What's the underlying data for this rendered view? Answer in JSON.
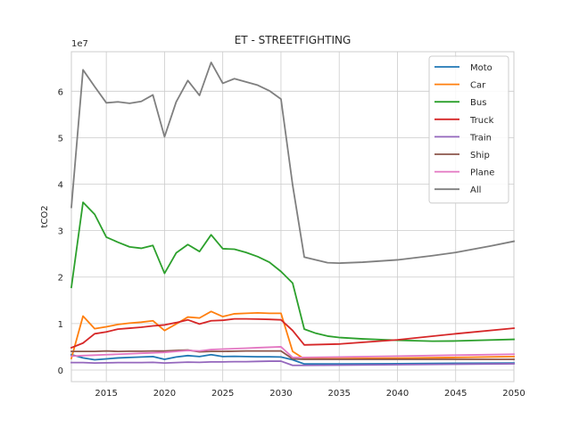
{
  "chart_data": {
    "type": "line",
    "title": "ET - STREETFIGHTING",
    "xlabel": "",
    "ylabel": "tCO2",
    "y_offset_label": "1e7",
    "y_scale_factor": 10000000,
    "xlim": [
      2012,
      2050
    ],
    "ylim": [
      -2500000,
      68500000
    ],
    "x_ticks": [
      2015,
      2020,
      2025,
      2030,
      2035,
      2040,
      2045,
      2050
    ],
    "y_ticks": [
      0,
      10000000,
      20000000,
      30000000,
      40000000,
      50000000,
      60000000
    ],
    "y_tick_labels": [
      "0",
      "1",
      "2",
      "3",
      "4",
      "5",
      "6"
    ],
    "grid": true,
    "legend_position": "top-right",
    "series": [
      {
        "name": "Moto",
        "color": "#1f77b4",
        "points": [
          [
            2012,
            3300000
          ],
          [
            2013,
            2600000
          ],
          [
            2014,
            2200000
          ],
          [
            2015,
            2400000
          ],
          [
            2016,
            2600000
          ],
          [
            2017,
            2700000
          ],
          [
            2018,
            2800000
          ],
          [
            2019,
            2900000
          ],
          [
            2020,
            2300000
          ],
          [
            2021,
            2800000
          ],
          [
            2022,
            3100000
          ],
          [
            2023,
            2900000
          ],
          [
            2024,
            3300000
          ],
          [
            2025,
            2900000
          ],
          [
            2026,
            2950000
          ],
          [
            2027,
            2900000
          ],
          [
            2028,
            2850000
          ],
          [
            2029,
            2850000
          ],
          [
            2030,
            2800000
          ],
          [
            2031,
            2200000
          ],
          [
            2032,
            1300000
          ],
          [
            2035,
            1300000
          ],
          [
            2040,
            1350000
          ],
          [
            2045,
            1450000
          ],
          [
            2050,
            1500000
          ]
        ]
      },
      {
        "name": "Car",
        "color": "#ff7f0e",
        "points": [
          [
            2012,
            2500000
          ],
          [
            2013,
            11600000
          ],
          [
            2014,
            8900000
          ],
          [
            2015,
            9300000
          ],
          [
            2016,
            9800000
          ],
          [
            2017,
            10100000
          ],
          [
            2018,
            10300000
          ],
          [
            2019,
            10600000
          ],
          [
            2020,
            8500000
          ],
          [
            2021,
            9900000
          ],
          [
            2022,
            11400000
          ],
          [
            2023,
            11200000
          ],
          [
            2024,
            12600000
          ],
          [
            2025,
            11500000
          ],
          [
            2026,
            12100000
          ],
          [
            2027,
            12200000
          ],
          [
            2028,
            12300000
          ],
          [
            2029,
            12200000
          ],
          [
            2030,
            12200000
          ],
          [
            2031,
            4000000
          ],
          [
            2032,
            2400000
          ],
          [
            2035,
            2450000
          ],
          [
            2040,
            2550000
          ],
          [
            2045,
            2700000
          ],
          [
            2050,
            2900000
          ]
        ]
      },
      {
        "name": "Bus",
        "color": "#2ca02c",
        "points": [
          [
            2012,
            17800000
          ],
          [
            2013,
            36100000
          ],
          [
            2014,
            33500000
          ],
          [
            2015,
            28600000
          ],
          [
            2016,
            27500000
          ],
          [
            2017,
            26500000
          ],
          [
            2018,
            26200000
          ],
          [
            2019,
            26800000
          ],
          [
            2020,
            20800000
          ],
          [
            2021,
            25200000
          ],
          [
            2022,
            27000000
          ],
          [
            2023,
            25500000
          ],
          [
            2024,
            29100000
          ],
          [
            2025,
            26100000
          ],
          [
            2026,
            26000000
          ],
          [
            2027,
            25300000
          ],
          [
            2028,
            24400000
          ],
          [
            2029,
            23200000
          ],
          [
            2030,
            21200000
          ],
          [
            2031,
            18700000
          ],
          [
            2032,
            8800000
          ],
          [
            2033,
            7900000
          ],
          [
            2034,
            7300000
          ],
          [
            2035,
            7000000
          ],
          [
            2037,
            6700000
          ],
          [
            2040,
            6400000
          ],
          [
            2043,
            6200000
          ],
          [
            2045,
            6250000
          ],
          [
            2050,
            6600000
          ]
        ]
      },
      {
        "name": "Truck",
        "color": "#d62728",
        "points": [
          [
            2012,
            4800000
          ],
          [
            2013,
            5800000
          ],
          [
            2014,
            7800000
          ],
          [
            2015,
            8200000
          ],
          [
            2016,
            8800000
          ],
          [
            2017,
            9000000
          ],
          [
            2018,
            9200000
          ],
          [
            2019,
            9500000
          ],
          [
            2020,
            9700000
          ],
          [
            2021,
            10200000
          ],
          [
            2022,
            10800000
          ],
          [
            2023,
            9900000
          ],
          [
            2024,
            10600000
          ],
          [
            2025,
            10700000
          ],
          [
            2026,
            11000000
          ],
          [
            2027,
            11000000
          ],
          [
            2028,
            10950000
          ],
          [
            2029,
            10900000
          ],
          [
            2030,
            10800000
          ],
          [
            2031,
            8500000
          ],
          [
            2032,
            5400000
          ],
          [
            2035,
            5600000
          ],
          [
            2040,
            6500000
          ],
          [
            2045,
            7800000
          ],
          [
            2050,
            9000000
          ]
        ]
      },
      {
        "name": "Train",
        "color": "#9467bd",
        "points": [
          [
            2012,
            1600000
          ],
          [
            2013,
            1600000
          ],
          [
            2014,
            1500000
          ],
          [
            2015,
            1550000
          ],
          [
            2016,
            1600000
          ],
          [
            2017,
            1600000
          ],
          [
            2018,
            1600000
          ],
          [
            2019,
            1650000
          ],
          [
            2020,
            1500000
          ],
          [
            2021,
            1600000
          ],
          [
            2022,
            1700000
          ],
          [
            2023,
            1650000
          ],
          [
            2024,
            1750000
          ],
          [
            2025,
            1750000
          ],
          [
            2026,
            1800000
          ],
          [
            2027,
            1800000
          ],
          [
            2028,
            1850000
          ],
          [
            2029,
            1900000
          ],
          [
            2030,
            1900000
          ],
          [
            2031,
            1000000
          ],
          [
            2032,
            1000000
          ],
          [
            2035,
            1050000
          ],
          [
            2040,
            1150000
          ],
          [
            2045,
            1250000
          ],
          [
            2050,
            1350000
          ]
        ]
      },
      {
        "name": "Ship",
        "color": "#8c564b",
        "points": [
          [
            2012,
            4000000
          ],
          [
            2013,
            4000000
          ],
          [
            2014,
            4000000
          ],
          [
            2015,
            4100000
          ],
          [
            2016,
            4000000
          ],
          [
            2017,
            4050000
          ],
          [
            2018,
            4050000
          ],
          [
            2019,
            4100000
          ],
          [
            2020,
            4100000
          ],
          [
            2021,
            4200000
          ],
          [
            2022,
            4300000
          ],
          [
            2023,
            3900000
          ],
          [
            2024,
            4000000
          ],
          [
            2025,
            4000000
          ],
          [
            2026,
            4050000
          ],
          [
            2027,
            4100000
          ],
          [
            2028,
            4100000
          ],
          [
            2029,
            4100000
          ],
          [
            2030,
            4100000
          ],
          [
            2031,
            2400000
          ],
          [
            2032,
            2300000
          ],
          [
            2035,
            2300000
          ],
          [
            2040,
            2300000
          ],
          [
            2045,
            2300000
          ],
          [
            2050,
            2300000
          ]
        ]
      },
      {
        "name": "Plane",
        "color": "#e377c2",
        "points": [
          [
            2012,
            3000000
          ],
          [
            2013,
            3100000
          ],
          [
            2014,
            3200000
          ],
          [
            2015,
            3300000
          ],
          [
            2016,
            3400000
          ],
          [
            2017,
            3500000
          ],
          [
            2018,
            3600000
          ],
          [
            2019,
            3700000
          ],
          [
            2020,
            3800000
          ],
          [
            2021,
            4000000
          ],
          [
            2022,
            4200000
          ],
          [
            2023,
            4100000
          ],
          [
            2024,
            4400000
          ],
          [
            2025,
            4500000
          ],
          [
            2026,
            4600000
          ],
          [
            2027,
            4700000
          ],
          [
            2028,
            4800000
          ],
          [
            2029,
            4900000
          ],
          [
            2030,
            5000000
          ],
          [
            2031,
            2700000
          ],
          [
            2032,
            2700000
          ],
          [
            2035,
            2800000
          ],
          [
            2040,
            3000000
          ],
          [
            2045,
            3200000
          ],
          [
            2050,
            3400000
          ]
        ]
      },
      {
        "name": "All",
        "color": "#7f7f7f",
        "points": [
          [
            2012,
            35000000
          ],
          [
            2013,
            64600000
          ],
          [
            2014,
            61000000
          ],
          [
            2015,
            57500000
          ],
          [
            2016,
            57700000
          ],
          [
            2017,
            57400000
          ],
          [
            2018,
            57800000
          ],
          [
            2019,
            59200000
          ],
          [
            2020,
            50200000
          ],
          [
            2021,
            57700000
          ],
          [
            2022,
            62300000
          ],
          [
            2023,
            59100000
          ],
          [
            2024,
            66200000
          ],
          [
            2025,
            61700000
          ],
          [
            2026,
            62700000
          ],
          [
            2027,
            62000000
          ],
          [
            2028,
            61300000
          ],
          [
            2029,
            60100000
          ],
          [
            2030,
            58300000
          ],
          [
            2031,
            39800000
          ],
          [
            2032,
            24300000
          ],
          [
            2033,
            23700000
          ],
          [
            2034,
            23100000
          ],
          [
            2035,
            23000000
          ],
          [
            2037,
            23200000
          ],
          [
            2040,
            23700000
          ],
          [
            2043,
            24600000
          ],
          [
            2045,
            25300000
          ],
          [
            2048,
            26700000
          ],
          [
            2050,
            27700000
          ]
        ]
      }
    ]
  }
}
